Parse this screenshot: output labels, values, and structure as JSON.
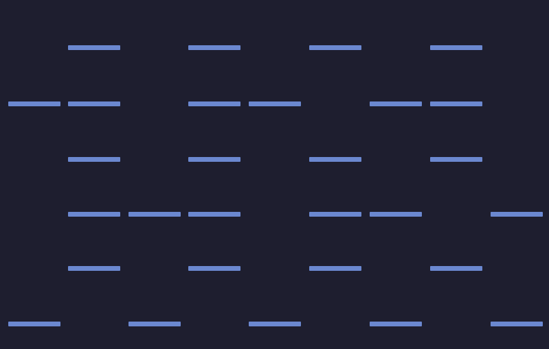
{
  "colors": {
    "background": "#1e1e2f",
    "bar": "#6b88d0"
  },
  "grid": {
    "columns": 9,
    "rows": [
      [
        1,
        3,
        5,
        7
      ],
      [
        0,
        1,
        3,
        4,
        6,
        7
      ],
      [
        1,
        3,
        5,
        7
      ],
      [
        1,
        2,
        3,
        5,
        6,
        8
      ],
      [
        1,
        3,
        5,
        7
      ],
      [
        0,
        2,
        4,
        6,
        8
      ]
    ]
  }
}
